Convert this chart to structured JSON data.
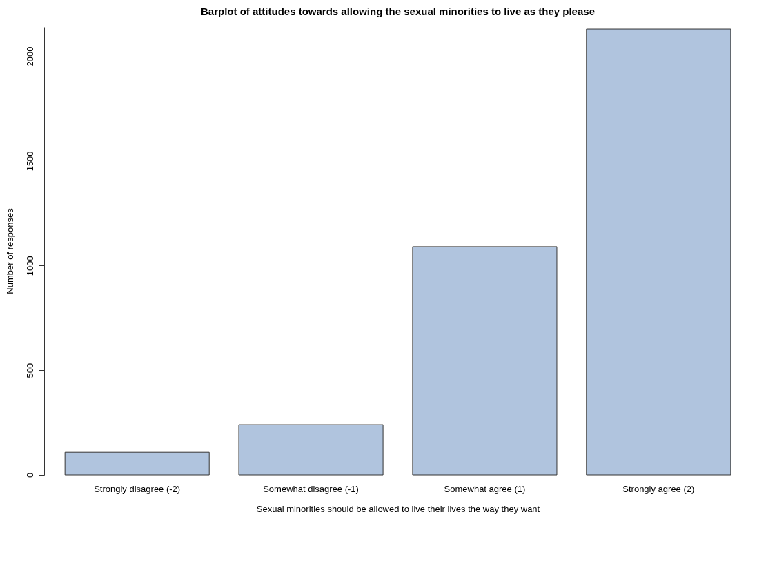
{
  "chart_data": {
    "type": "bar",
    "title": "Barplot of attitudes towards allowing the sexual minorities to live as they please",
    "xlabel": "Sexual minorities should be allowed to live their lives the way they want",
    "ylabel": "Number of responses",
    "categories": [
      "Strongly disagree (-2)",
      "Somewhat disagree (-1)",
      "Somewhat agree (1)",
      "Strongly agree (2)"
    ],
    "values": [
      108,
      240,
      1090,
      2130
    ],
    "color": "#b0c4de",
    "ylim": [
      0,
      2140
    ],
    "yticks": [
      0,
      500,
      1000,
      1500,
      2000
    ],
    "grid": false
  }
}
